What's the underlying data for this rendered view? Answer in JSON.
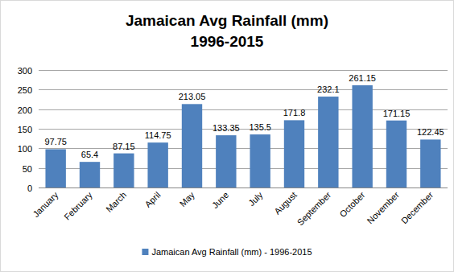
{
  "chart_data": {
    "type": "bar",
    "title": "Jamaican Avg Rainfall (mm)",
    "subtitle": "1996-2015",
    "categories": [
      "January",
      "February",
      "March",
      "April",
      "May",
      "June",
      "July",
      "August",
      "September",
      "October",
      "November",
      "December"
    ],
    "series": [
      {
        "name": "Jamaican Avg Rainfall (mm) - 1996-2015",
        "color": "#4f81bd",
        "values": [
          97.75,
          65.4,
          87.15,
          114.75,
          213.05,
          133.35,
          135.5,
          171.8,
          232.1,
          261.15,
          171.15,
          122.45
        ]
      }
    ],
    "ylim": [
      0,
      300
    ],
    "yticks": [
      0,
      50,
      100,
      150,
      200,
      250,
      300
    ],
    "grid": true,
    "data_labels": true,
    "legend": "bottom"
  }
}
